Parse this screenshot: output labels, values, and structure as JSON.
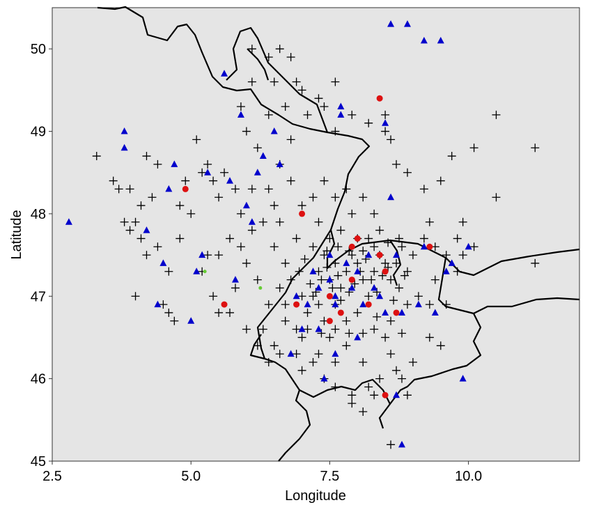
{
  "chart_data": {
    "type": "scatter",
    "title": "",
    "xlabel": "Longitude",
    "ylabel": "Latitude",
    "xlim": [
      2.5,
      12.0
    ],
    "ylim": [
      45.0,
      50.5
    ],
    "x_ticks": [
      2.5,
      5.0,
      7.5,
      10.0
    ],
    "x_tick_labels": [
      "2.5",
      "5.0",
      "7.5",
      "10.0"
    ],
    "y_ticks": [
      45,
      46,
      47,
      48,
      49,
      50
    ],
    "y_tick_labels": [
      "45",
      "46",
      "47",
      "48",
      "49",
      "50"
    ],
    "grid": false,
    "legend": "none",
    "panel_background": "#e5e5e5",
    "boundary_color": "#000000",
    "series": [
      {
        "marker": "plus",
        "color": "#000000",
        "points": [
          [
            3.3,
            48.7
          ],
          [
            3.6,
            48.4
          ],
          [
            3.7,
            48.3
          ],
          [
            3.9,
            48.3
          ],
          [
            3.8,
            47.9
          ],
          [
            4.0,
            47.9
          ],
          [
            3.9,
            47.8
          ],
          [
            4.1,
            47.7
          ],
          [
            4.0,
            47.0
          ],
          [
            4.2,
            47.5
          ],
          [
            4.3,
            48.2
          ],
          [
            4.2,
            48.7
          ],
          [
            4.4,
            48.6
          ],
          [
            4.1,
            48.1
          ],
          [
            4.4,
            47.6
          ],
          [
            4.6,
            47.3
          ],
          [
            4.5,
            46.9
          ],
          [
            4.6,
            46.8
          ],
          [
            4.7,
            46.7
          ],
          [
            4.8,
            47.7
          ],
          [
            4.8,
            48.1
          ],
          [
            4.9,
            48.4
          ],
          [
            5.1,
            48.9
          ],
          [
            5.0,
            48.0
          ],
          [
            5.2,
            48.5
          ],
          [
            5.3,
            48.6
          ],
          [
            5.4,
            48.4
          ],
          [
            5.5,
            48.2
          ],
          [
            5.6,
            48.5
          ],
          [
            5.2,
            47.3
          ],
          [
            5.3,
            47.5
          ],
          [
            5.4,
            47.0
          ],
          [
            5.5,
            46.8
          ],
          [
            5.7,
            46.8
          ],
          [
            5.8,
            47.1
          ],
          [
            5.9,
            47.6
          ],
          [
            5.9,
            48.0
          ],
          [
            6.0,
            47.4
          ],
          [
            6.1,
            47.8
          ],
          [
            6.1,
            48.3
          ],
          [
            6.2,
            47.2
          ],
          [
            6.3,
            47.9
          ],
          [
            6.4,
            48.3
          ],
          [
            6.5,
            48.1
          ],
          [
            6.6,
            47.9
          ],
          [
            6.5,
            47.6
          ],
          [
            6.7,
            47.4
          ],
          [
            6.9,
            47.7
          ],
          [
            6.8,
            47.2
          ],
          [
            6.6,
            47.1
          ],
          [
            6.4,
            46.9
          ],
          [
            6.3,
            46.6
          ],
          [
            6.5,
            46.4
          ],
          [
            6.7,
            46.7
          ],
          [
            6.9,
            46.6
          ],
          [
            7.0,
            46.5
          ],
          [
            7.1,
            46.8
          ],
          [
            7.2,
            47.0
          ],
          [
            7.3,
            47.3
          ],
          [
            7.4,
            47.5
          ],
          [
            7.5,
            47.2
          ],
          [
            7.6,
            47.4
          ],
          [
            7.7,
            47.1
          ],
          [
            7.8,
            47.3
          ],
          [
            7.9,
            47.5
          ],
          [
            8.0,
            47.4
          ],
          [
            8.1,
            47.2
          ],
          [
            8.2,
            47.0
          ],
          [
            8.3,
            47.3
          ],
          [
            8.4,
            47.5
          ],
          [
            8.5,
            47.4
          ],
          [
            8.6,
            47.2
          ],
          [
            8.7,
            47.4
          ],
          [
            8.8,
            47.6
          ],
          [
            8.9,
            47.3
          ],
          [
            9.0,
            47.5
          ],
          [
            9.2,
            47.7
          ],
          [
            9.4,
            47.6
          ],
          [
            9.6,
            47.5
          ],
          [
            9.8,
            47.7
          ],
          [
            9.9,
            47.5
          ],
          [
            10.1,
            47.6
          ],
          [
            11.2,
            47.4
          ],
          [
            7.3,
            46.9
          ],
          [
            7.4,
            46.7
          ],
          [
            7.6,
            46.9
          ],
          [
            7.8,
            46.7
          ],
          [
            8.0,
            46.8
          ],
          [
            8.3,
            46.6
          ],
          [
            8.5,
            46.5
          ],
          [
            8.6,
            46.3
          ],
          [
            8.7,
            46.1
          ],
          [
            8.4,
            46.0
          ],
          [
            8.1,
            46.2
          ],
          [
            7.8,
            46.4
          ],
          [
            7.5,
            46.5
          ],
          [
            7.3,
            46.3
          ],
          [
            7.0,
            46.1
          ],
          [
            7.4,
            46.0
          ],
          [
            7.6,
            45.9
          ],
          [
            7.9,
            45.7
          ],
          [
            8.1,
            45.6
          ],
          [
            8.3,
            45.8
          ],
          [
            8.6,
            45.2
          ],
          [
            8.9,
            45.8
          ],
          [
            9.0,
            46.2
          ],
          [
            9.3,
            46.5
          ],
          [
            9.5,
            46.4
          ],
          [
            8.8,
            46.0
          ],
          [
            6.8,
            48.9
          ],
          [
            6.2,
            48.8
          ],
          [
            6.0,
            49.0
          ],
          [
            6.4,
            49.2
          ],
          [
            6.7,
            49.3
          ],
          [
            7.1,
            49.2
          ],
          [
            7.4,
            49.3
          ],
          [
            7.6,
            49.0
          ],
          [
            7.9,
            49.2
          ],
          [
            8.2,
            49.1
          ],
          [
            8.5,
            49.0
          ],
          [
            8.7,
            48.6
          ],
          [
            8.9,
            48.5
          ],
          [
            9.2,
            48.3
          ],
          [
            9.5,
            48.4
          ],
          [
            9.7,
            48.7
          ],
          [
            10.1,
            48.8
          ],
          [
            10.5,
            49.2
          ],
          [
            10.5,
            48.2
          ],
          [
            11.2,
            48.8
          ],
          [
            9.3,
            47.9
          ],
          [
            9.9,
            47.9
          ],
          [
            6.1,
            50.0
          ],
          [
            6.4,
            49.9
          ],
          [
            6.6,
            50.0
          ],
          [
            6.8,
            49.9
          ],
          [
            6.5,
            49.6
          ],
          [
            6.1,
            49.6
          ],
          [
            5.9,
            49.3
          ],
          [
            6.9,
            49.6
          ],
          [
            7.0,
            49.5
          ],
          [
            7.3,
            49.4
          ],
          [
            7.6,
            49.6
          ],
          [
            8.5,
            49.2
          ],
          [
            8.6,
            48.9
          ],
          [
            7.2,
            48.2
          ],
          [
            7.4,
            48.4
          ],
          [
            7.6,
            48.2
          ],
          [
            7.8,
            48.3
          ],
          [
            7.9,
            48.0
          ],
          [
            8.1,
            48.2
          ],
          [
            8.3,
            48.0
          ],
          [
            8.4,
            47.8
          ],
          [
            8.2,
            47.7
          ],
          [
            8.0,
            47.7
          ],
          [
            7.7,
            47.8
          ],
          [
            7.5,
            47.7
          ],
          [
            7.3,
            47.9
          ],
          [
            7.0,
            48.1
          ],
          [
            6.8,
            48.4
          ],
          [
            6.6,
            48.6
          ],
          [
            5.8,
            48.3
          ],
          [
            5.7,
            47.7
          ],
          [
            5.5,
            47.5
          ],
          [
            6.0,
            46.6
          ],
          [
            6.2,
            46.4
          ],
          [
            6.4,
            46.2
          ],
          [
            6.6,
            46.3
          ],
          [
            6.9,
            46.3
          ],
          [
            7.2,
            46.2
          ],
          [
            7.6,
            46.2
          ],
          [
            8.9,
            46.9
          ],
          [
            9.1,
            47.0
          ],
          [
            9.3,
            46.9
          ],
          [
            9.6,
            46.9
          ],
          [
            9.4,
            47.2
          ],
          [
            9.8,
            47.3
          ],
          [
            7.9,
            45.8
          ],
          [
            8.2,
            45.9
          ],
          [
            7.0,
            47.0
          ],
          [
            6.7,
            46.9
          ],
          [
            7.15,
            47.15
          ],
          [
            7.25,
            47.05
          ],
          [
            7.35,
            47.2
          ],
          [
            7.45,
            47.35
          ],
          [
            7.55,
            47.1
          ],
          [
            7.65,
            47.25
          ],
          [
            7.7,
            46.95
          ],
          [
            7.85,
            47.05
          ],
          [
            7.95,
            47.15
          ],
          [
            8.05,
            47.3
          ],
          [
            8.15,
            47.45
          ],
          [
            8.25,
            47.2
          ],
          [
            8.35,
            47.05
          ],
          [
            8.45,
            47.25
          ],
          [
            8.55,
            47.35
          ],
          [
            8.65,
            46.95
          ],
          [
            8.75,
            47.1
          ],
          [
            8.85,
            47.25
          ],
          [
            7.05,
            47.45
          ],
          [
            6.95,
            47.3
          ],
          [
            7.2,
            47.6
          ],
          [
            7.45,
            47.55
          ],
          [
            7.65,
            47.6
          ],
          [
            7.85,
            47.55
          ],
          [
            8.1,
            47.55
          ],
          [
            8.3,
            47.6
          ],
          [
            8.55,
            47.65
          ],
          [
            8.75,
            47.7
          ],
          [
            7.1,
            46.6
          ],
          [
            7.35,
            46.55
          ],
          [
            7.6,
            46.6
          ],
          [
            7.85,
            46.55
          ],
          [
            8.1,
            46.55
          ],
          [
            8.35,
            46.75
          ],
          [
            8.6,
            46.7
          ],
          [
            8.8,
            46.55
          ]
        ]
      },
      {
        "marker": "triangle",
        "color": "#0000cc",
        "points": [
          [
            2.8,
            47.9
          ],
          [
            3.8,
            49.0
          ],
          [
            3.8,
            48.8
          ],
          [
            4.2,
            47.8
          ],
          [
            4.4,
            46.9
          ],
          [
            4.5,
            47.4
          ],
          [
            4.6,
            48.3
          ],
          [
            4.7,
            48.6
          ],
          [
            5.0,
            46.7
          ],
          [
            5.1,
            47.3
          ],
          [
            5.2,
            47.5
          ],
          [
            5.3,
            48.5
          ],
          [
            5.6,
            49.7
          ],
          [
            5.7,
            48.4
          ],
          [
            5.8,
            47.2
          ],
          [
            5.9,
            49.2
          ],
          [
            6.0,
            48.1
          ],
          [
            6.1,
            47.9
          ],
          [
            6.2,
            48.5
          ],
          [
            6.3,
            48.7
          ],
          [
            6.5,
            49.0
          ],
          [
            6.6,
            48.6
          ],
          [
            6.8,
            46.3
          ],
          [
            7.0,
            46.6
          ],
          [
            7.4,
            46.0
          ],
          [
            7.6,
            46.3
          ],
          [
            7.7,
            49.3
          ],
          [
            7.7,
            49.2
          ],
          [
            7.9,
            47.1
          ],
          [
            8.0,
            47.3
          ],
          [
            8.2,
            47.5
          ],
          [
            8.4,
            47.0
          ],
          [
            8.5,
            46.8
          ],
          [
            8.5,
            49.1
          ],
          [
            8.6,
            48.2
          ],
          [
            8.7,
            45.8
          ],
          [
            8.8,
            45.2
          ],
          [
            8.6,
            50.3
          ],
          [
            8.9,
            50.3
          ],
          [
            9.2,
            50.1
          ],
          [
            9.5,
            50.1
          ],
          [
            9.6,
            47.3
          ],
          [
            9.7,
            47.4
          ],
          [
            9.9,
            46.0
          ],
          [
            10.0,
            47.6
          ],
          [
            7.2,
            47.3
          ],
          [
            7.5,
            47.2
          ],
          [
            7.6,
            47.0
          ],
          [
            7.8,
            47.4
          ],
          [
            8.1,
            46.9
          ],
          [
            8.3,
            47.1
          ],
          [
            7.1,
            46.9
          ],
          [
            7.3,
            47.1
          ],
          [
            6.9,
            47.0
          ],
          [
            8.8,
            46.8
          ],
          [
            9.1,
            46.9
          ],
          [
            9.4,
            46.8
          ],
          [
            8.0,
            46.5
          ],
          [
            7.3,
            46.6
          ],
          [
            9.2,
            47.6
          ],
          [
            8.7,
            47.5
          ],
          [
            7.5,
            47.5
          ],
          [
            7.6,
            46.9
          ]
        ]
      },
      {
        "marker": "circle",
        "color": "#dd1111",
        "points": [
          [
            4.9,
            48.3
          ],
          [
            7.0,
            48.0
          ],
          [
            8.4,
            49.4
          ],
          [
            5.6,
            46.9
          ],
          [
            6.9,
            46.9
          ],
          [
            7.5,
            46.7
          ],
          [
            7.7,
            46.8
          ],
          [
            7.9,
            47.6
          ],
          [
            8.0,
            47.7
          ],
          [
            8.4,
            47.5
          ],
          [
            8.5,
            47.3
          ],
          [
            8.2,
            46.9
          ],
          [
            8.7,
            46.8
          ],
          [
            9.3,
            47.6
          ],
          [
            8.5,
            45.8
          ],
          [
            7.5,
            47.0
          ],
          [
            7.9,
            47.2
          ]
        ]
      },
      {
        "marker": "dot",
        "color": "#66cc33",
        "points": [
          [
            5.25,
            47.3
          ],
          [
            6.25,
            47.1
          ]
        ]
      }
    ]
  }
}
